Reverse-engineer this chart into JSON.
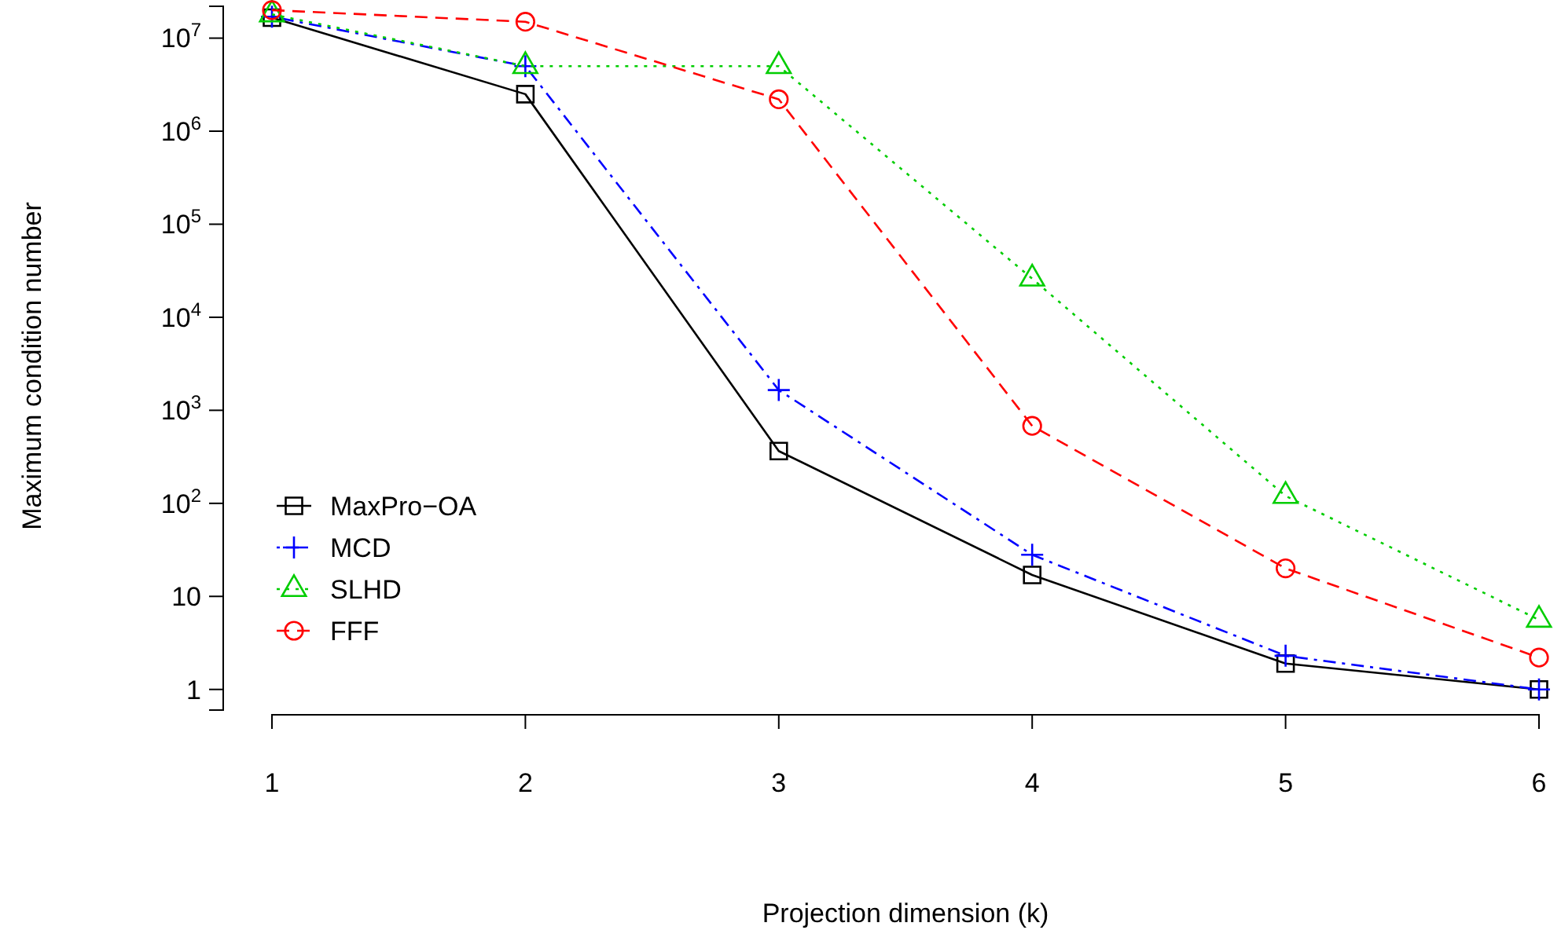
{
  "chart_data": {
    "type": "line",
    "xlabel": "Projection dimension (k)",
    "ylabel": "Maximum condition number",
    "x": [
      1,
      2,
      3,
      4,
      5,
      6
    ],
    "xlim": [
      1,
      6
    ],
    "xticks": [
      1,
      2,
      3,
      4,
      5,
      6
    ],
    "ylim": [
      0.6,
      22000000
    ],
    "log": "y",
    "yticks": [
      1,
      10,
      {
        "value": 100,
        "label": "10$^{2}$"
      },
      {
        "value": 1000,
        "label": "10$^{3}$"
      },
      {
        "value": 10000,
        "label": "10$^{4}$"
      },
      {
        "value": 100000,
        "label": "10$^{5}$"
      },
      {
        "value": 1000000,
        "label": "10$^{6}$"
      },
      {
        "value": 10000000,
        "label": "10$^{7}$"
      }
    ],
    "grid": false,
    "legend": "bottom left",
    "series": [
      {
        "name": "MaxPro−OA",
        "color": "#000000",
        "marker": "square",
        "line_style": "solid",
        "values": [
          16600000,
          2500000,
          365,
          17,
          1.9,
          1
        ]
      },
      {
        "name": "MCD",
        "color": "#0000ff",
        "marker": "cross",
        "line_style": "dashdot",
        "values": [
          17000000,
          5000000,
          1650,
          28,
          2.3,
          1
        ]
      },
      {
        "name": "SLHD",
        "color": "#00cd00",
        "marker": "triangle",
        "line_style": "dotted",
        "values": [
          18000000,
          5000000,
          5000000,
          26000,
          120,
          5.6
        ]
      },
      {
        "name": "FFF",
        "color": "#ff0000",
        "marker": "circle",
        "line_style": "dashed",
        "values": [
          20000000,
          15000000,
          2200000,
          680,
          20,
          2.2
        ]
      }
    ]
  }
}
